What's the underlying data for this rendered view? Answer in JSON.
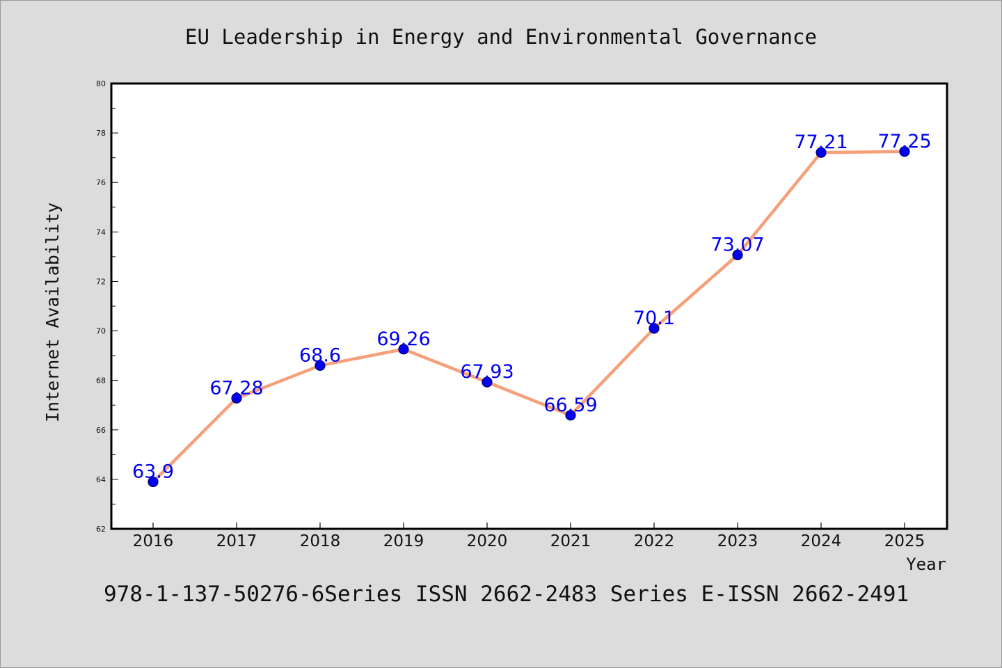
{
  "chart_data": {
    "type": "line",
    "title": "EU Leadership in Energy and Environmental Governance",
    "xlabel": "Year",
    "ylabel": "Internet Availability",
    "categories": [
      "2016",
      "2017",
      "2018",
      "2019",
      "2020",
      "2021",
      "2022",
      "2023",
      "2024",
      "2025"
    ],
    "series": [
      {
        "values": [
          63.9,
          67.28,
          68.6,
          69.26,
          67.93,
          66.59,
          70.1,
          73.07,
          77.21,
          77.25
        ],
        "data_labels": [
          "63.9",
          "67.28",
          "68.6",
          "69.26",
          "67.93",
          "66.59",
          "70.1",
          "73.07",
          "77.21",
          "77.25"
        ]
      }
    ],
    "ylim": [
      62,
      80
    ],
    "yticks": [
      "62",
      "64",
      "66",
      "68",
      "70",
      "72",
      "74",
      "76",
      "78",
      "80"
    ],
    "grid": false,
    "legend": "none"
  },
  "footer_note": "978-1-137-50276-6Series ISSN 2662-2483 Series E-ISSN 2662-2491",
  "colors": {
    "background": "#dcdcdc",
    "plot_area": "#ffffff",
    "line": "#f5a07a",
    "marker": "#0000ee",
    "data_label": "#0000ee"
  }
}
